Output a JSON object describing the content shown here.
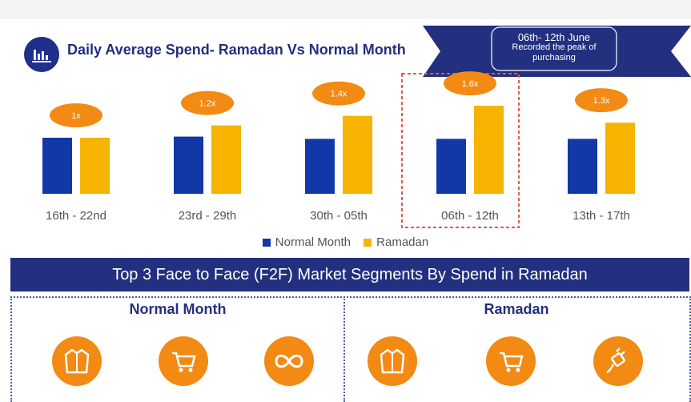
{
  "header": {
    "title": "Daily Average Spend- Ramadan Vs Normal Month",
    "callout_line1": "06th- 12th June",
    "callout_line2": "Recorded the peak of purchasing"
  },
  "chart_data": {
    "type": "bar",
    "title": "Daily Average Spend- Ramadan Vs Normal Month",
    "categories": [
      "16th - 22nd",
      "23rd - 29th",
      "30th - 05th",
      "06th - 12th",
      "13th - 17th"
    ],
    "series": [
      {
        "name": "Normal Month",
        "values": [
          1.0,
          1.02,
          0.98,
          0.98,
          0.98
        ]
      },
      {
        "name": "Ramadan",
        "values": [
          1.0,
          1.22,
          1.39,
          1.57,
          1.27
        ]
      }
    ],
    "multipliers": [
      "1x",
      "1.2x",
      "1.4x",
      "1.6x",
      "1.3x"
    ],
    "highlight_category": "06th - 12th",
    "ylim": [
      0,
      1.8
    ],
    "grid": false,
    "legend_position": "bottom",
    "colors": {
      "normal": "#1237a6",
      "ramadan": "#f6b400",
      "badge": "#f28a13",
      "highlight": "#e05a4e"
    }
  },
  "segments": {
    "banner": "Top 3 Face to Face (F2F) Market Segments By Spend in Ramadan",
    "normal_title": "Normal Month",
    "ramadan_title": "Ramadan",
    "normal_icons": [
      "jacket-icon",
      "shopping-cart-icon",
      "infinity-icon"
    ],
    "ramadan_icons": [
      "jacket-icon",
      "shopping-cart-icon",
      "electric-plug-icon"
    ]
  },
  "colors": {
    "navy": "#22307f",
    "orange": "#f28a13"
  }
}
